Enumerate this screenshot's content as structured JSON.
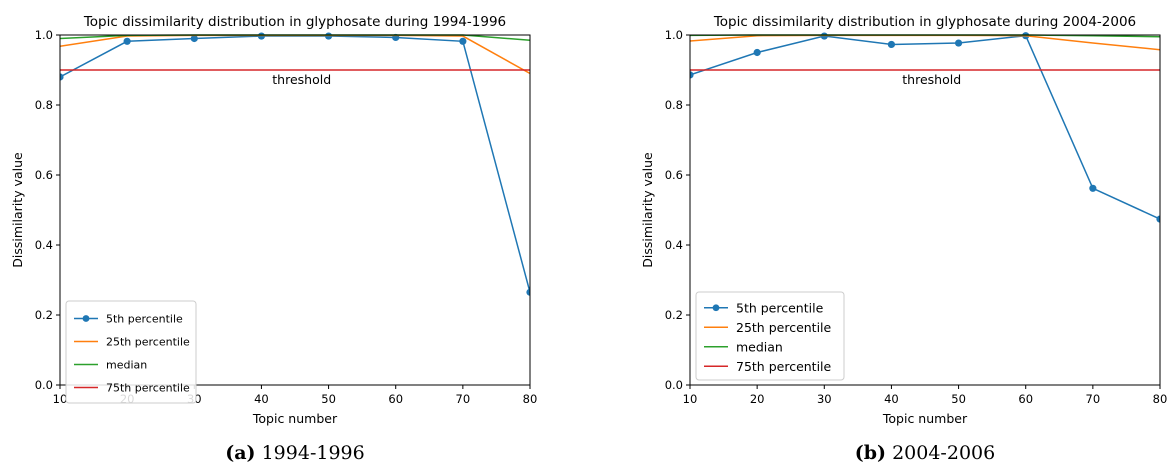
{
  "chart_data": [
    {
      "type": "line",
      "title": "Topic dissimilarity distribution in glyphosate during 1994-1996",
      "xlabel": "Topic number",
      "ylabel": "Dissimilarity value",
      "xlim": [
        10,
        80
      ],
      "ylim": [
        0.0,
        1.0
      ],
      "xticks": [
        "10",
        "20",
        "30",
        "40",
        "50",
        "60",
        "70",
        "80"
      ],
      "yticks": [
        "0.0",
        "0.2",
        "0.4",
        "0.6",
        "0.8",
        "1.0"
      ],
      "x": [
        10,
        20,
        30,
        40,
        50,
        60,
        70,
        80
      ],
      "series": [
        {
          "name": "5th percentile",
          "color": "#1f77b4",
          "marker": true,
          "values": [
            0.88,
            0.982,
            0.99,
            0.997,
            0.997,
            0.993,
            0.982,
            0.265
          ]
        },
        {
          "name": "25th percentile",
          "color": "#ff7f0e",
          "marker": false,
          "values": [
            0.968,
            0.997,
            0.999,
            0.999,
            0.999,
            0.999,
            0.997,
            0.89
          ]
        },
        {
          "name": "median",
          "color": "#2ca02c",
          "marker": false,
          "values": [
            0.99,
            0.999,
            1.0,
            1.0,
            1.0,
            1.0,
            1.0,
            0.985
          ]
        },
        {
          "name": "75th percentile",
          "color": "#d62728",
          "marker": false,
          "values": [
            0.9,
            0.9,
            0.9,
            0.9,
            0.9,
            0.9,
            0.9,
            0.9
          ]
        }
      ],
      "annotations": [
        {
          "text": "threshold",
          "x": 46,
          "y": 0.86
        }
      ],
      "legend_position": "lower-left",
      "grid": false
    },
    {
      "type": "line",
      "title": "Topic dissimilarity distribution in glyphosate during 2004-2006",
      "xlabel": "Topic number",
      "ylabel": "Dissimilarity value",
      "xlim": [
        10,
        80
      ],
      "ylim": [
        0.0,
        1.0
      ],
      "xticks": [
        "10",
        "20",
        "30",
        "40",
        "50",
        "60",
        "70",
        "80"
      ],
      "yticks": [
        "0.0",
        "0.2",
        "0.4",
        "0.6",
        "0.8",
        "1.0"
      ],
      "x": [
        10,
        20,
        30,
        40,
        50,
        60,
        70,
        80
      ],
      "series": [
        {
          "name": "5th percentile",
          "color": "#1f77b4",
          "marker": true,
          "values": [
            0.886,
            0.95,
            0.997,
            0.973,
            0.977,
            0.998,
            0.562,
            0.474
          ]
        },
        {
          "name": "25th percentile",
          "color": "#ff7f0e",
          "marker": false,
          "values": [
            0.983,
            0.998,
            0.999,
            0.999,
            0.999,
            0.998,
            0.977,
            0.958
          ]
        },
        {
          "name": "median",
          "color": "#2ca02c",
          "marker": false,
          "values": [
            0.999,
            1.0,
            1.0,
            1.0,
            1.0,
            1.0,
            0.998,
            0.995
          ]
        },
        {
          "name": "75th percentile",
          "color": "#d62728",
          "marker": false,
          "values": [
            0.9,
            0.9,
            0.9,
            0.9,
            0.9,
            0.9,
            0.9,
            0.9
          ]
        }
      ],
      "annotations": [
        {
          "text": "threshold",
          "x": 46,
          "y": 0.86
        }
      ],
      "legend_position": "lower-left",
      "grid": false
    }
  ],
  "captions": [
    {
      "label": "(a)",
      "text": "1994-1996"
    },
    {
      "label": "(b)",
      "text": "2004-2006"
    }
  ]
}
